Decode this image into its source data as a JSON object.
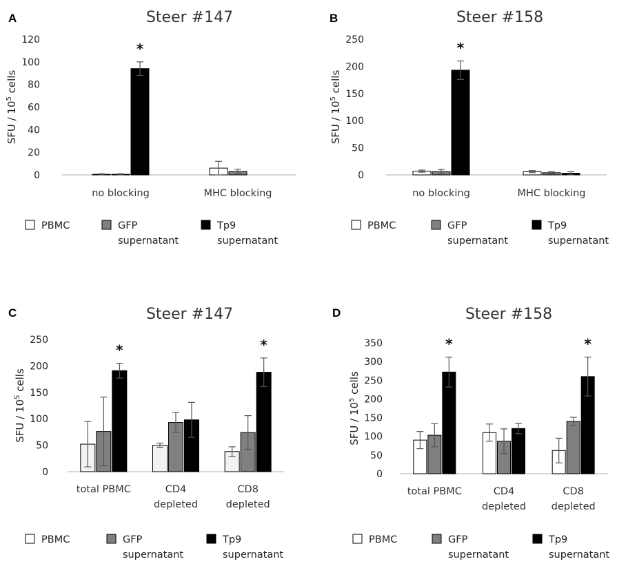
{
  "legend": {
    "items": [
      {
        "lines": [
          "PBMC"
        ],
        "color": "#ffffff"
      },
      {
        "lines": [
          "GFP",
          "supernatant"
        ],
        "color": "#808080"
      },
      {
        "lines": [
          "Tp9",
          "supernatant"
        ],
        "color": "#000000"
      }
    ]
  },
  "chart_data": [
    {
      "panel": "A",
      "type": "bar",
      "title": "Steer #147",
      "ylabel": "SFU / 10^5 cells",
      "ylim": [
        0,
        120
      ],
      "yticks": [
        0,
        20,
        40,
        60,
        80,
        100,
        120
      ],
      "categories": [
        [
          "no blocking"
        ],
        [
          "MHC blocking"
        ]
      ],
      "series": [
        {
          "name": "PBMC",
          "color": "#ffffff",
          "values": [
            0.5,
            6
          ],
          "errors": [
            0.5,
            6
          ]
        },
        {
          "name": "GFP supernatant",
          "color": "#808080",
          "values": [
            0.5,
            3
          ],
          "errors": [
            0.5,
            2
          ]
        },
        {
          "name": "Tp9 supernatant",
          "color": "#000000",
          "values": [
            94,
            null
          ],
          "errors": [
            6,
            null
          ]
        }
      ],
      "significance": [
        {
          "category": 0,
          "series": 2,
          "mark": "*"
        }
      ]
    },
    {
      "panel": "B",
      "type": "bar",
      "title": "Steer #158",
      "ylabel": "SFU / 10^5 cells",
      "ylim": [
        0,
        250
      ],
      "yticks": [
        0,
        50,
        100,
        150,
        200,
        250
      ],
      "categories": [
        [
          "no blocking"
        ],
        [
          "MHC blocking"
        ]
      ],
      "series": [
        {
          "name": "PBMC",
          "color": "#ffffff",
          "values": [
            7,
            6
          ],
          "errors": [
            2,
            2
          ]
        },
        {
          "name": "GFP supernatant",
          "color": "#808080",
          "values": [
            6,
            4
          ],
          "errors": [
            4,
            2
          ]
        },
        {
          "name": "Tp9 supernatant",
          "color": "#000000",
          "values": [
            193,
            3
          ],
          "errors": [
            17,
            3
          ]
        }
      ],
      "significance": [
        {
          "category": 0,
          "series": 2,
          "mark": "*"
        }
      ]
    },
    {
      "panel": "C",
      "type": "bar",
      "title": "Steer #147",
      "ylabel": "SFU / 10^5 cells",
      "ylim": [
        0,
        250
      ],
      "yticks": [
        0,
        50,
        100,
        150,
        200,
        250
      ],
      "categories": [
        [
          "total PBMC"
        ],
        [
          "CD4",
          "depleted"
        ],
        [
          "CD8",
          "depleted"
        ]
      ],
      "series": [
        {
          "name": "PBMC",
          "color": "#f2f2f2",
          "values": [
            52,
            50,
            38
          ],
          "errors": [
            43,
            4,
            9
          ]
        },
        {
          "name": "GFP supernatant",
          "color": "#808080",
          "values": [
            76,
            93,
            74
          ],
          "errors": [
            65,
            19,
            32
          ]
        },
        {
          "name": "Tp9 supernatant",
          "color": "#000000",
          "values": [
            191,
            98,
            188
          ],
          "errors": [
            14,
            33,
            27
          ]
        }
      ],
      "significance": [
        {
          "category": 0,
          "series": 2,
          "mark": "*"
        },
        {
          "category": 2,
          "series": 2,
          "mark": "*"
        }
      ]
    },
    {
      "panel": "D",
      "type": "bar",
      "title": "Steer #158",
      "ylabel": "SFU / 10^5 cells",
      "ylim": [
        0,
        350
      ],
      "yticks": [
        0,
        50,
        100,
        150,
        200,
        250,
        300,
        350
      ],
      "categories": [
        [
          "total PBMC"
        ],
        [
          "CD4",
          "depleted"
        ],
        [
          "CD8",
          "depleted"
        ]
      ],
      "series": [
        {
          "name": "PBMC",
          "color": "#ffffff",
          "values": [
            90,
            110,
            62
          ],
          "errors": [
            23,
            23,
            33
          ]
        },
        {
          "name": "GFP supernatant",
          "color": "#808080",
          "values": [
            103,
            87,
            140
          ],
          "errors": [
            31,
            33,
            11
          ]
        },
        {
          "name": "Tp9 supernatant",
          "color": "#000000",
          "values": [
            272,
            121,
            260
          ],
          "errors": [
            40,
            14,
            52
          ]
        }
      ],
      "significance": [
        {
          "category": 0,
          "series": 2,
          "mark": "*"
        },
        {
          "category": 2,
          "series": 2,
          "mark": "*"
        }
      ]
    }
  ]
}
